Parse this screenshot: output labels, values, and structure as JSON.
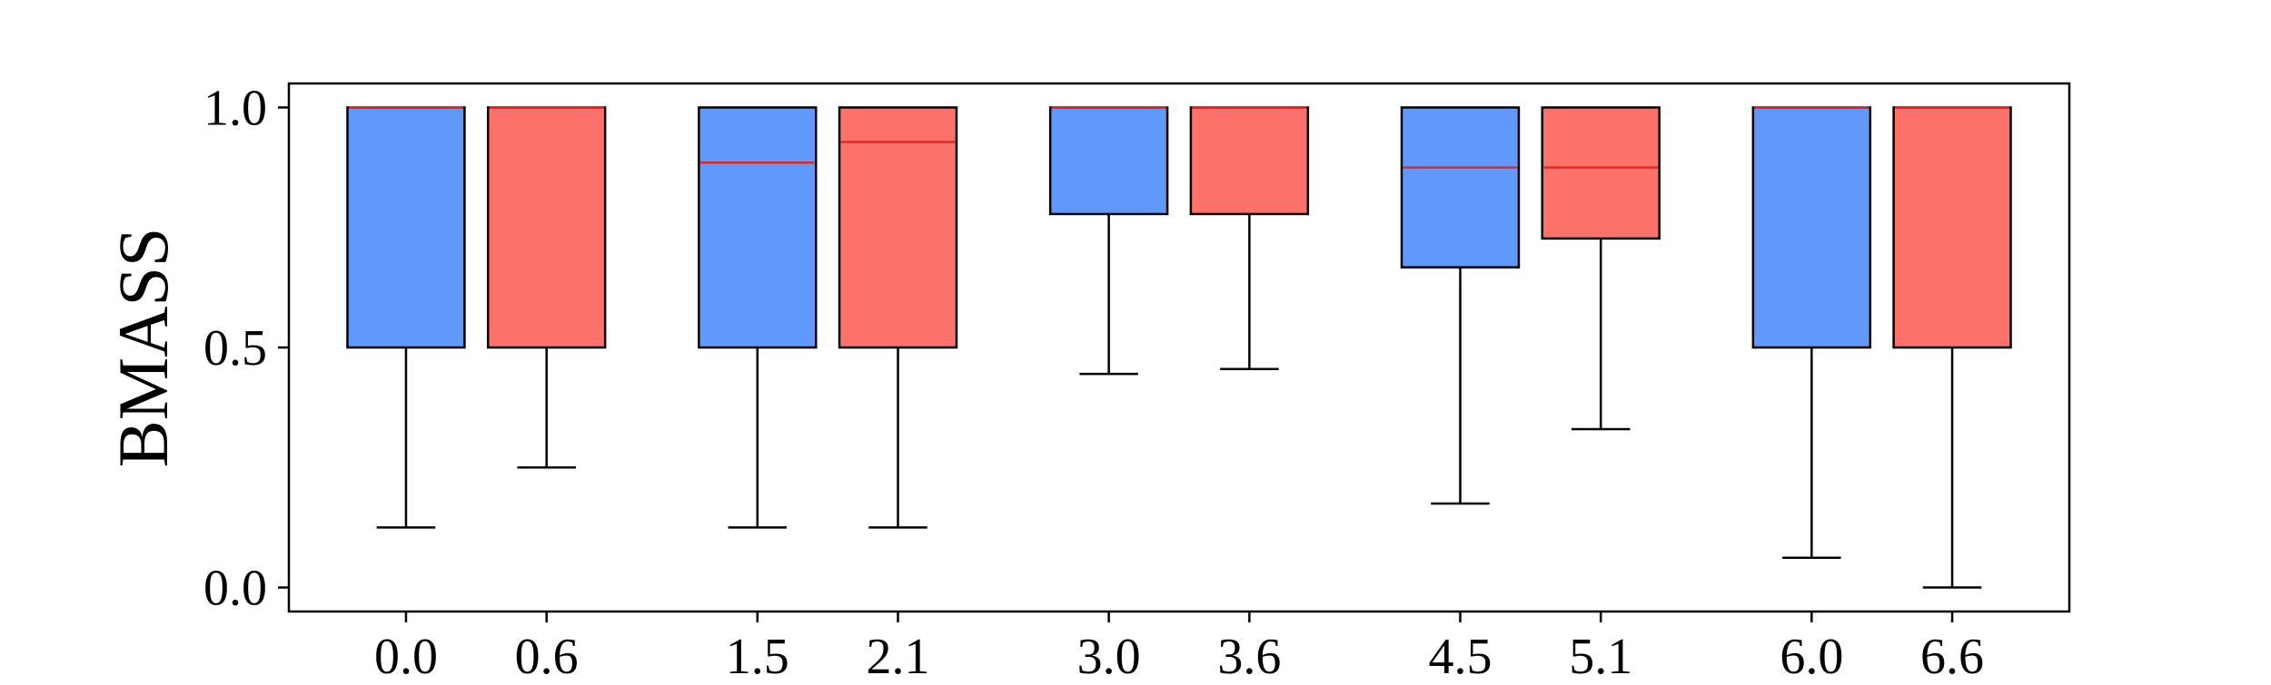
{
  "chart_data": {
    "type": "box",
    "ylabel": "BMASS",
    "xlabel": "",
    "title": "",
    "ylim": [
      -0.05,
      1.05
    ],
    "xlim": [
      -0.5,
      7.1
    ],
    "yticks": [
      0.0,
      0.5,
      1.0
    ],
    "ytick_labels": [
      "0.0",
      "0.5",
      "1.0"
    ],
    "grid": false,
    "legend": "none",
    "colors": {
      "blue_box": "#6199FA",
      "red_box": "#FC716A",
      "median": "#E8251E",
      "edge": "#000000"
    },
    "boxes": [
      {
        "x": 0.0,
        "label": "0.0",
        "color": "blue",
        "whisker_low": 0.125,
        "q1": 0.5,
        "median": 1.0,
        "q3": 1.0,
        "whisker_high": 1.0
      },
      {
        "x": 0.6,
        "label": "0.6",
        "color": "red",
        "whisker_low": 0.25,
        "q1": 0.5,
        "median": 1.0,
        "q3": 1.0,
        "whisker_high": 1.0
      },
      {
        "x": 1.5,
        "label": "1.5",
        "color": "blue",
        "whisker_low": 0.125,
        "q1": 0.5,
        "median": 0.885,
        "q3": 1.0,
        "whisker_high": 1.0
      },
      {
        "x": 2.1,
        "label": "2.1",
        "color": "red",
        "whisker_low": 0.125,
        "q1": 0.5,
        "median": 0.928,
        "q3": 1.0,
        "whisker_high": 1.0
      },
      {
        "x": 3.0,
        "label": "3.0",
        "color": "blue",
        "whisker_low": 0.445,
        "q1": 0.778,
        "median": 1.0,
        "q3": 1.0,
        "whisker_high": 1.0
      },
      {
        "x": 3.6,
        "label": "3.6",
        "color": "red",
        "whisker_low": 0.455,
        "q1": 0.778,
        "median": 1.0,
        "q3": 1.0,
        "whisker_high": 1.0
      },
      {
        "x": 4.5,
        "label": "4.5",
        "color": "blue",
        "whisker_low": 0.175,
        "q1": 0.667,
        "median": 0.875,
        "q3": 1.0,
        "whisker_high": 1.0
      },
      {
        "x": 5.1,
        "label": "5.1",
        "color": "red",
        "whisker_low": 0.33,
        "q1": 0.727,
        "median": 0.875,
        "q3": 1.0,
        "whisker_high": 1.0
      },
      {
        "x": 6.0,
        "label": "6.0",
        "color": "blue",
        "whisker_low": 0.062,
        "q1": 0.5,
        "median": 1.0,
        "q3": 1.0,
        "whisker_high": 1.0
      },
      {
        "x": 6.6,
        "label": "6.6",
        "color": "red",
        "whisker_low": 0.0,
        "q1": 0.5,
        "median": 1.0,
        "q3": 1.0,
        "whisker_high": 1.0
      }
    ]
  }
}
